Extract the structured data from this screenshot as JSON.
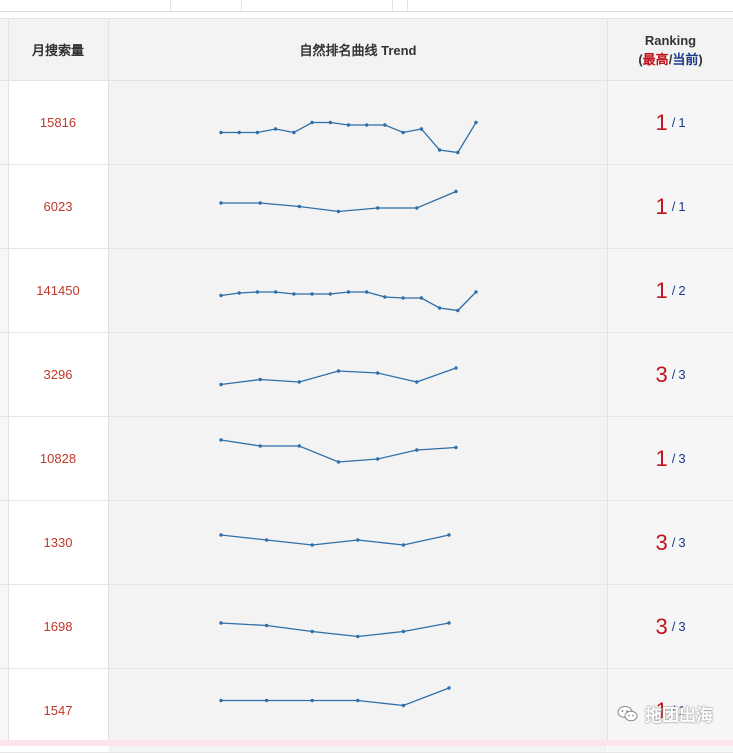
{
  "header": {
    "volume_label": "月搜索量",
    "trend_label": "自然排名曲线 Trend",
    "ranking_label": "Ranking",
    "ranking_sub_open": "(",
    "ranking_best_label": "最高",
    "ranking_slash": "/",
    "ranking_current_label": "当前",
    "ranking_sub_close": ")"
  },
  "rows": [
    {
      "volume": "15816",
      "best": "1",
      "current": "1",
      "trend": [
        95,
        95,
        95,
        88,
        95,
        75,
        75,
        80,
        80,
        80,
        95,
        88,
        130,
        135,
        75
      ]
    },
    {
      "volume": "6023",
      "best": "1",
      "current": "1",
      "trend": [
        68,
        68,
        75,
        85,
        78,
        78,
        45
      ]
    },
    {
      "volume": "141450",
      "best": "1",
      "current": "2",
      "trend": [
        85,
        80,
        78,
        78,
        82,
        82,
        82,
        78,
        78,
        88,
        90,
        90,
        110,
        115,
        78
      ]
    },
    {
      "volume": "3296",
      "best": "3",
      "current": "3",
      "trend": [
        95,
        85,
        90,
        68,
        72,
        90,
        62
      ]
    },
    {
      "volume": "10828",
      "best": "1",
      "current": "3",
      "trend": [
        38,
        50,
        50,
        82,
        76,
        58,
        53
      ]
    },
    {
      "volume": "1330",
      "best": "3",
      "current": "3",
      "trend": [
        60,
        70,
        80,
        70,
        80,
        60
      ]
    },
    {
      "volume": "1698",
      "best": "3",
      "current": "3",
      "trend": [
        68,
        73,
        85,
        95,
        85,
        68
      ]
    },
    {
      "volume": "1547",
      "best": "1",
      "current": "1",
      "trend": [
        55,
        55,
        55,
        55,
        65,
        30
      ]
    }
  ],
  "watermark": {
    "text": "拖团出海",
    "icon": "wechat-icon"
  },
  "colors": {
    "line": "#2f6fa7",
    "volume": "#c0392b",
    "rank_best": "#c0141c",
    "rank_current": "#1b3a8a"
  }
}
